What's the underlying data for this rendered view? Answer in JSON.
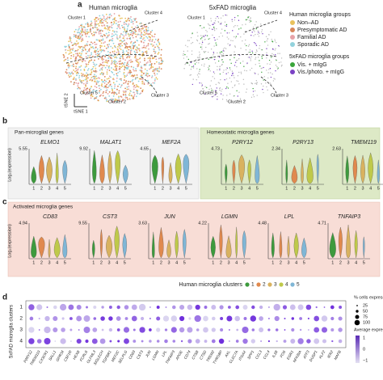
{
  "panel_a": {
    "letter": "a",
    "titles": [
      "Human microglia",
      "5xFAD microglia"
    ],
    "clusters": [
      "Cluster 1",
      "Cluster 4",
      "Cluster 5",
      "Cluster 2",
      "Cluster 3"
    ],
    "x_label": "tSNE 1",
    "y_label": "tSNE 2",
    "legend_human": {
      "title": "Human microglia groups",
      "items": [
        {
          "label": "Non–AD",
          "color": "#e9c25c"
        },
        {
          "label": "Presymptomatic AD",
          "color": "#d8875a"
        },
        {
          "label": "Familial AD",
          "color": "#e7a3a8"
        },
        {
          "label": "Sporadic AD",
          "color": "#92d2dc"
        }
      ]
    },
    "legend_mouse": {
      "title": "5xFAD microglia groups",
      "items": [
        {
          "label": "Vis. + mIgG",
          "color": "#3aa53a"
        },
        {
          "label": "Vis./photo. + mIgG",
          "color": "#7b42c4"
        }
      ]
    }
  },
  "panel_b": {
    "letter": "b",
    "y_label": "Log₂(expression)",
    "x_ticks": [
      "1",
      "2",
      "3",
      "4",
      "5"
    ],
    "groups": [
      {
        "title": "Pan-microglial genes",
        "genes": [
          {
            "name": "ELMO1",
            "max": "5.55"
          },
          {
            "name": "MALAT1",
            "max": "9.92"
          },
          {
            "name": "MEF2A",
            "max": "4.65"
          }
        ]
      },
      {
        "title": "Homeostatic microglia genes",
        "genes": [
          {
            "name": "P2RY12",
            "max": "4.73"
          },
          {
            "name": "P2RY13",
            "max": "2.34"
          },
          {
            "name": "TMEM119",
            "max": "2.63"
          }
        ]
      }
    ]
  },
  "panel_c": {
    "letter": "c",
    "y_label": "Log₂(expression)",
    "title": "Activated microglia genes",
    "genes": [
      {
        "name": "CD83",
        "max": "4.94"
      },
      {
        "name": "CST3",
        "max": "9.55"
      },
      {
        "name": "JUN",
        "max": "3.63"
      },
      {
        "name": "LGMN",
        "max": "4.22"
      },
      {
        "name": "LPL",
        "max": "4.48"
      },
      {
        "name": "TNFAIP3",
        "max": "4.71"
      }
    ],
    "legend": {
      "title": "Human microglia clusters",
      "items": [
        {
          "label": "1",
          "color": "#3d9a3d"
        },
        {
          "label": "2",
          "color": "#e0894e"
        },
        {
          "label": "3",
          "color": "#d9b25f"
        },
        {
          "label": "4",
          "color": "#bfc94a"
        },
        {
          "label": "5",
          "color": "#7fb6d6"
        }
      ]
    }
  },
  "panel_d": {
    "letter": "d",
    "y_label": "5xFAD microglia clusters",
    "rows": [
      "1",
      "2",
      "3",
      "4"
    ],
    "genes": [
      "P2RY12",
      "TMEM119",
      "CX3CR1",
      "SALL1",
      "GPR34",
      "CSF1R",
      "HEXB",
      "FCRLS",
      "OLFML3",
      "SIGLECH",
      "TGFBR1",
      "MEF2C",
      "SELPLG",
      "CD83",
      "CST3",
      "JUN",
      "LGMN",
      "LPL",
      "TNFAIP3",
      "APOE",
      "CD74",
      "CTSB",
      "CTSD",
      "TREM2",
      "TYROBP",
      "AXL",
      "CLEC7A",
      "ITGAX",
      "SPP1",
      "CCL3",
      "CCL4",
      "IL1B",
      "FOS",
      "EGR1",
      "NFKBIA",
      "ATF3",
      "DUSP1",
      "KLF2",
      "IER2",
      "MAFB"
    ],
    "size_legend": {
      "title": "% cells expressing",
      "ticks": [
        "25",
        "50",
        "75",
        "100"
      ]
    },
    "color_legend": {
      "title": "Average expression",
      "ticks": [
        "1",
        "0",
        "−1"
      ]
    }
  }
}
